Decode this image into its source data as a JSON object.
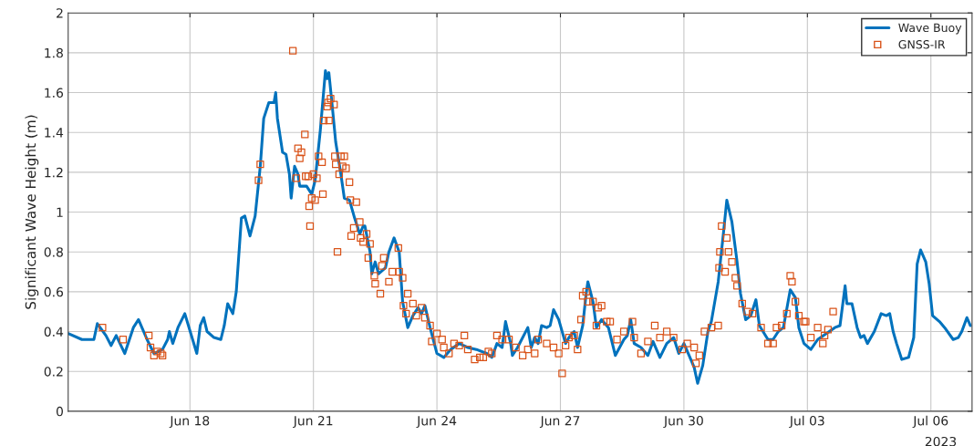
{
  "chart_data": {
    "type": "line",
    "ylabel": "Significant Wave Height (m)",
    "xlim": [
      "2023-06-15T01:00",
      "2023-07-07T00:00"
    ],
    "ylim": [
      0,
      2
    ],
    "xticks": [
      {
        "value": "2023-06-18",
        "label": "Jun 18"
      },
      {
        "value": "2023-06-21",
        "label": "Jun 21"
      },
      {
        "value": "2023-06-24",
        "label": "Jun 24"
      },
      {
        "value": "2023-06-27",
        "label": "Jun 27"
      },
      {
        "value": "2023-06-30",
        "label": "Jun 30"
      },
      {
        "value": "2023-07-03",
        "label": "Jul 03"
      },
      {
        "value": "2023-07-06",
        "label": "Jul 06"
      }
    ],
    "yticks": [
      0,
      0.2,
      0.4,
      0.6,
      0.8,
      1,
      1.2,
      1.4,
      1.6,
      1.8,
      2
    ],
    "annotations": [
      "2023"
    ],
    "grid": true,
    "legend": "top right",
    "series": [
      {
        "name": "Wave Buoy",
        "color": "#0072bd",
        "line_style": "solid",
        "marker": "none",
        "x": [
          "2023-06-15T01:00",
          "2023-06-15T09:00",
          "2023-06-15T16:00",
          "2023-06-15T18:00",
          "2023-06-15T23:00",
          "2023-06-16T02:00",
          "2023-06-16T05:00",
          "2023-06-16T10:00",
          "2023-06-16T15:00",
          "2023-06-16T18:00",
          "2023-06-16T23:00",
          "2023-06-17T03:00",
          "2023-06-17T08:00",
          "2023-06-17T11:00",
          "2023-06-17T12:00",
          "2023-06-17T14:00",
          "2023-06-17T17:00",
          "2023-06-17T21:00",
          "2023-06-18T04:00",
          "2023-06-18T06:00",
          "2023-06-18T08:00",
          "2023-06-18T10:00",
          "2023-06-18T14:00",
          "2023-06-18T18:00",
          "2023-06-18T20:00",
          "2023-06-18T22:00",
          "2023-06-19T01:00",
          "2023-06-19T03:00",
          "2023-06-19T06:00",
          "2023-06-19T08:00",
          "2023-06-19T11:00",
          "2023-06-19T14:00",
          "2023-06-19T17:00",
          "2023-06-19T19:00",
          "2023-06-19T22:00",
          "2023-06-20T01:00",
          "2023-06-20T02:00",
          "2023-06-20T03:00",
          "2023-06-20T06:00",
          "2023-06-20T08:00",
          "2023-06-20T10:00",
          "2023-06-20T11:00",
          "2023-06-20T13:00",
          "2023-06-20T15:00",
          "2023-06-20T16:00",
          "2023-06-20T20:00",
          "2023-06-20T23:00",
          "2023-06-21T01:00",
          "2023-06-21T04:00",
          "2023-06-21T07:00",
          "2023-06-21T08:00",
          "2023-06-21T09:00",
          "2023-06-21T11:00",
          "2023-06-21T13:00",
          "2023-06-21T16:00",
          "2023-06-21T18:00",
          "2023-06-21T21:00",
          "2023-06-22T00:00",
          "2023-06-22T03:00",
          "2023-06-22T05:00",
          "2023-06-22T06:00",
          "2023-06-22T09:00",
          "2023-06-22T10:00",
          "2023-06-22T12:00",
          "2023-06-22T14:00",
          "2023-06-22T18:00",
          "2023-06-22T20:00",
          "2023-06-22T23:00",
          "2023-06-23T02:00",
          "2023-06-23T04:00",
          "2023-06-23T07:00",
          "2023-06-23T10:00",
          "2023-06-23T13:00",
          "2023-06-23T15:00",
          "2023-06-23T17:00",
          "2023-06-23T20:00",
          "2023-06-24T00:00",
          "2023-06-24T04:00",
          "2023-06-24T08:00",
          "2023-06-24T13:00",
          "2023-06-24T18:00",
          "2023-06-24T23:00",
          "2023-06-25T05:00",
          "2023-06-25T08:00",
          "2023-06-25T11:00",
          "2023-06-25T14:00",
          "2023-06-25T16:00",
          "2023-06-25T19:00",
          "2023-06-25T20:00",
          "2023-06-25T23:00",
          "2023-06-26T05:00",
          "2023-06-26T07:00",
          "2023-06-26T09:00",
          "2023-06-26T11:00",
          "2023-06-26T13:00",
          "2023-06-26T16:00",
          "2023-06-26T18:00",
          "2023-06-26T20:00",
          "2023-06-26T23:00",
          "2023-06-27T03:00",
          "2023-06-27T05:00",
          "2023-06-27T08:00",
          "2023-06-27T10:00",
          "2023-06-27T13:00",
          "2023-06-27T15:00",
          "2023-06-27T16:00",
          "2023-06-27T19:00",
          "2023-06-27T21:00",
          "2023-06-28T00:00",
          "2023-06-28T04:00",
          "2023-06-28T08:00",
          "2023-06-28T13:00",
          "2023-06-28T15:00",
          "2023-06-28T17:00",
          "2023-06-28T19:00",
          "2023-06-28T23:00",
          "2023-06-29T03:00",
          "2023-06-29T06:00",
          "2023-06-29T10:00",
          "2023-06-29T14:00",
          "2023-06-29T18:00",
          "2023-06-29T21:00",
          "2023-06-30T00:00",
          "2023-06-30T03:00",
          "2023-06-30T06:00",
          "2023-06-30T08:00",
          "2023-06-30T11:00",
          "2023-06-30T14:00",
          "2023-06-30T16:00",
          "2023-06-30T20:00",
          "2023-06-30T23:00",
          "2023-07-01T01:00",
          "2023-07-01T04:00",
          "2023-07-01T07:00",
          "2023-07-01T09:00",
          "2023-07-01T12:00",
          "2023-07-01T15:00",
          "2023-07-01T18:00",
          "2023-07-01T20:00",
          "2023-07-02T01:00",
          "2023-07-02T04:00",
          "2023-07-02T07:00",
          "2023-07-02T10:00",
          "2023-07-02T14:00",
          "2023-07-02T17:00",
          "2023-07-02T19:00",
          "2023-07-02T22:00",
          "2023-07-03T02:00",
          "2023-07-03T06:00",
          "2023-07-03T16:00",
          "2023-07-03T19:00",
          "2023-07-03T22:00",
          "2023-07-03T23:00",
          "2023-07-04T02:00",
          "2023-07-04T05:00",
          "2023-07-04T07:00",
          "2023-07-04T09:00",
          "2023-07-04T11:00",
          "2023-07-04T15:00",
          "2023-07-04T19:00",
          "2023-07-04T22:00",
          "2023-07-05T00:00",
          "2023-07-05T02:00",
          "2023-07-05T04:00",
          "2023-07-05T07:00",
          "2023-07-05T11:00",
          "2023-07-05T14:00",
          "2023-07-05T16:00",
          "2023-07-05T18:00",
          "2023-07-05T21:00",
          "2023-07-05T23:00",
          "2023-07-06T01:00",
          "2023-07-06T05:00",
          "2023-07-06T08:00",
          "2023-07-06T13:00",
          "2023-07-06T16:00",
          "2023-07-06T18:00",
          "2023-07-06T21:00",
          "2023-07-06T23:00"
        ],
        "values": [
          0.39,
          0.36,
          0.36,
          0.44,
          0.38,
          0.33,
          0.38,
          0.29,
          0.42,
          0.46,
          0.36,
          0.29,
          0.31,
          0.36,
          0.4,
          0.34,
          0.42,
          0.49,
          0.29,
          0.43,
          0.47,
          0.4,
          0.37,
          0.36,
          0.43,
          0.54,
          0.49,
          0.6,
          0.97,
          0.98,
          0.88,
          0.98,
          1.23,
          1.47,
          1.55,
          1.55,
          1.6,
          1.47,
          1.3,
          1.29,
          1.19,
          1.07,
          1.23,
          1.19,
          1.13,
          1.13,
          1.09,
          1.16,
          1.41,
          1.71,
          1.67,
          1.7,
          1.53,
          1.35,
          1.19,
          1.07,
          1.06,
          0.97,
          0.89,
          0.93,
          0.93,
          0.8,
          0.69,
          0.75,
          0.69,
          0.72,
          0.8,
          0.87,
          0.8,
          0.55,
          0.42,
          0.48,
          0.52,
          0.49,
          0.53,
          0.42,
          0.29,
          0.27,
          0.31,
          0.34,
          0.32,
          0.31,
          0.29,
          0.27,
          0.34,
          0.32,
          0.45,
          0.34,
          0.28,
          0.32,
          0.42,
          0.32,
          0.37,
          0.34,
          0.43,
          0.42,
          0.43,
          0.51,
          0.46,
          0.34,
          0.37,
          0.4,
          0.32,
          0.43,
          0.59,
          0.65,
          0.55,
          0.42,
          0.46,
          0.42,
          0.28,
          0.36,
          0.38,
          0.46,
          0.34,
          0.32,
          0.28,
          0.35,
          0.27,
          0.34,
          0.37,
          0.29,
          0.34,
          0.28,
          0.22,
          0.14,
          0.23,
          0.4,
          0.45,
          0.65,
          0.89,
          1.06,
          0.95,
          0.75,
          0.59,
          0.46,
          0.48,
          0.56,
          0.43,
          0.36,
          0.36,
          0.4,
          0.42,
          0.61,
          0.57,
          0.42,
          0.34,
          0.31,
          0.36,
          0.42,
          0.43,
          0.63,
          0.54,
          0.54,
          0.42,
          0.37,
          0.38,
          0.34,
          0.4,
          0.49,
          0.48,
          0.49,
          0.4,
          0.34,
          0.26,
          0.27,
          0.37,
          0.74,
          0.81,
          0.75,
          0.64,
          0.48,
          0.45,
          0.42,
          0.36,
          0.37,
          0.4,
          0.47,
          0.43
        ]
      },
      {
        "name": "GNSS-IR",
        "type": "scatter",
        "color": "#d95319",
        "marker": "square",
        "x": [
          "2023-06-15T21:00",
          "2023-06-16T09:00",
          "2023-06-17T00:00",
          "2023-06-17T01:00",
          "2023-06-17T03:00",
          "2023-06-17T05:00",
          "2023-06-17T07:00",
          "2023-06-17T08:00",
          "2023-06-19T16:00",
          "2023-06-19T17:00",
          "2023-06-20T12:00",
          "2023-06-20T14:00",
          "2023-06-20T15:00",
          "2023-06-20T16:00",
          "2023-06-20T17:00",
          "2023-06-20T19:00",
          "2023-06-20T19:30",
          "2023-06-20T21:00",
          "2023-06-20T21:30",
          "2023-06-20T22:00",
          "2023-06-20T23:00",
          "2023-06-21T00:00",
          "2023-06-21T01:00",
          "2023-06-21T02:00",
          "2023-06-21T03:00",
          "2023-06-21T05:00",
          "2023-06-21T05:30",
          "2023-06-21T06:00",
          "2023-06-21T08:00",
          "2023-06-21T08:30",
          "2023-06-21T09:00",
          "2023-06-21T10:00",
          "2023-06-21T12:00",
          "2023-06-21T12:30",
          "2023-06-21T13:00",
          "2023-06-21T14:00",
          "2023-06-21T15:00",
          "2023-06-21T16:00",
          "2023-06-21T17:00",
          "2023-06-21T18:00",
          "2023-06-21T19:00",
          "2023-06-21T21:00",
          "2023-06-21T21:30",
          "2023-06-21T22:00",
          "2023-06-21T23:30",
          "2023-06-22T01:00",
          "2023-06-22T03:00",
          "2023-06-22T03:30",
          "2023-06-22T05:00",
          "2023-06-22T07:00",
          "2023-06-22T08:00",
          "2023-06-22T09:00",
          "2023-06-22T11:30",
          "2023-06-22T12:00",
          "2023-06-22T15:00",
          "2023-06-22T16:00",
          "2023-06-22T17:00",
          "2023-06-22T20:00",
          "2023-06-22T22:00",
          "2023-06-23T01:30",
          "2023-06-23T02:00",
          "2023-06-23T04:00",
          "2023-06-23T04:30",
          "2023-06-23T06:00",
          "2023-06-23T07:00",
          "2023-06-23T10:00",
          "2023-06-23T12:00",
          "2023-06-23T15:00",
          "2023-06-23T17:00",
          "2023-06-23T20:00",
          "2023-06-23T21:00",
          "2023-06-24T00:00",
          "2023-06-24T03:00",
          "2023-06-24T04:00",
          "2023-06-24T07:00",
          "2023-06-24T10:00",
          "2023-06-24T13:00",
          "2023-06-24T16:00",
          "2023-06-24T18:00",
          "2023-06-24T22:00",
          "2023-06-25T01:00",
          "2023-06-25T03:00",
          "2023-06-25T06:00",
          "2023-06-25T08:00",
          "2023-06-25T11:00",
          "2023-06-25T14:00",
          "2023-06-25T18:00",
          "2023-06-25T22:00",
          "2023-06-26T02:00",
          "2023-06-26T05:00",
          "2023-06-26T09:00",
          "2023-06-26T11:00",
          "2023-06-26T16:00",
          "2023-06-26T20:00",
          "2023-06-26T23:00",
          "2023-06-27T01:00",
          "2023-06-27T03:00",
          "2023-06-27T05:00",
          "2023-06-27T08:00",
          "2023-06-27T10:00",
          "2023-06-27T12:00",
          "2023-06-27T13:00",
          "2023-06-27T15:00",
          "2023-06-27T16:00",
          "2023-06-27T19:00",
          "2023-06-27T21:00",
          "2023-06-27T22:00",
          "2023-06-28T00:00",
          "2023-06-28T03:00",
          "2023-06-28T05:00",
          "2023-06-28T09:00",
          "2023-06-28T13:00",
          "2023-06-28T18:00",
          "2023-06-28T19:00",
          "2023-06-28T23:00",
          "2023-06-29T03:00",
          "2023-06-29T07:00",
          "2023-06-29T10:00",
          "2023-06-29T14:00",
          "2023-06-29T18:00",
          "2023-06-29T23:00",
          "2023-06-30T02:00",
          "2023-06-30T06:00",
          "2023-06-30T07:00",
          "2023-06-30T09:00",
          "2023-06-30T12:00",
          "2023-06-30T16:00",
          "2023-06-30T20:00",
          "2023-06-30T20:30",
          "2023-06-30T21:00",
          "2023-06-30T22:00",
          "2023-07-01T00:00",
          "2023-07-01T01:00",
          "2023-07-01T02:00",
          "2023-07-01T04:00",
          "2023-07-01T06:00",
          "2023-07-01T07:00",
          "2023-07-01T10:00",
          "2023-07-01T13:00",
          "2023-07-01T16:00",
          "2023-07-01T21:00",
          "2023-07-02T01:00",
          "2023-07-02T04:00",
          "2023-07-02T06:00",
          "2023-07-02T09:00",
          "2023-07-02T12:00",
          "2023-07-02T14:00",
          "2023-07-02T15:00",
          "2023-07-02T17:00",
          "2023-07-02T19:00",
          "2023-07-02T22:00",
          "2023-07-02T23:00",
          "2023-07-03T02:00",
          "2023-07-03T06:00",
          "2023-07-03T09:00",
          "2023-07-03T10:00",
          "2023-07-03T12:00",
          "2023-07-03T15:00"
        ],
        "values": [
          0.42,
          0.36,
          0.38,
          0.32,
          0.28,
          0.3,
          0.29,
          0.28,
          1.16,
          1.24,
          1.81,
          1.17,
          1.32,
          1.27,
          1.3,
          1.39,
          1.18,
          1.18,
          1.03,
          0.93,
          1.07,
          1.19,
          1.06,
          1.17,
          1.28,
          1.25,
          1.09,
          1.46,
          1.53,
          1.55,
          1.46,
          1.57,
          1.54,
          1.28,
          1.24,
          0.8,
          1.19,
          1.28,
          1.23,
          1.28,
          1.22,
          1.15,
          1.06,
          0.88,
          0.92,
          1.05,
          0.95,
          0.87,
          0.85,
          0.89,
          0.77,
          0.84,
          0.68,
          0.64,
          0.59,
          0.73,
          0.77,
          0.65,
          0.7,
          0.82,
          0.7,
          0.67,
          0.53,
          0.49,
          0.59,
          0.54,
          0.48,
          0.52,
          0.47,
          0.43,
          0.35,
          0.39,
          0.36,
          0.32,
          0.29,
          0.34,
          0.33,
          0.38,
          0.31,
          0.26,
          0.27,
          0.27,
          0.3,
          0.29,
          0.38,
          0.36,
          0.36,
          0.32,
          0.28,
          0.31,
          0.29,
          0.36,
          0.34,
          0.32,
          0.29,
          0.19,
          0.33,
          0.37,
          0.38,
          0.31,
          0.46,
          0.58,
          0.6,
          0.55,
          0.55,
          0.43,
          0.52,
          0.53,
          0.45,
          0.45,
          0.36,
          0.4,
          0.45,
          0.37,
          0.29,
          0.35,
          0.43,
          0.37,
          0.4,
          0.37,
          0.31,
          0.34,
          0.32,
          0.24,
          0.28,
          0.4,
          0.42,
          0.43,
          0.72,
          0.8,
          0.93,
          0.7,
          0.87,
          0.8,
          0.75,
          0.67,
          0.63,
          0.54,
          0.5,
          0.49,
          0.42,
          0.34,
          0.34,
          0.42,
          0.43,
          0.49,
          0.68,
          0.65,
          0.55,
          0.48,
          0.45,
          0.45,
          0.37,
          0.42,
          0.34,
          0.38,
          0.41,
          0.5
        ]
      }
    ]
  }
}
